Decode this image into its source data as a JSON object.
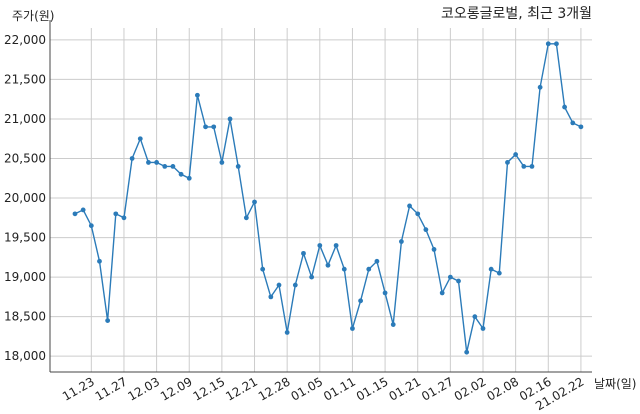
{
  "chart_data": {
    "type": "line",
    "title": "코오롱글로벌, 최근 3개월",
    "ylabel": "주가(원)",
    "xlabel": "날짜(일)",
    "ylim": [
      17800,
      22150
    ],
    "yticks": [
      "18,000",
      "18,500",
      "19,000",
      "19,500",
      "20,000",
      "20,500",
      "21,000",
      "21,500",
      "22,000"
    ],
    "ytick_values": [
      18000,
      18500,
      19000,
      19500,
      20000,
      20500,
      21000,
      21500,
      22000
    ],
    "xticks": [
      "11.23",
      "11.27",
      "12.03",
      "12.09",
      "12.15",
      "12.21",
      "12.28",
      "01.05",
      "01.11",
      "01.15",
      "01.21",
      "01.27",
      "02.02",
      "02.08",
      "02.16",
      "21.02.22"
    ],
    "xtick_index": [
      2,
      6,
      10,
      14,
      18,
      22,
      26,
      30,
      34,
      38,
      42,
      46,
      50,
      54,
      58,
      62
    ],
    "grid": true,
    "line_color": "#2b7bb9",
    "series": [
      {
        "values": [
          19800,
          19850,
          19650,
          19200,
          18450,
          19800,
          19750,
          20500,
          20750,
          20450,
          20450,
          20400,
          20400,
          20300,
          20250,
          21300,
          20900,
          20900,
          20450,
          21000,
          20400,
          19750,
          19950,
          19100,
          18750,
          18900,
          18300,
          18900,
          19300,
          19000,
          19400,
          19150,
          19400,
          19100,
          18350,
          18700,
          19100,
          19200,
          18800,
          18400,
          19450,
          19900,
          19800,
          19600,
          19350,
          18800,
          19000,
          18950,
          18050,
          18500,
          18350,
          19100,
          19050,
          20450,
          20550,
          20400,
          20400,
          21400,
          21950,
          21950,
          21150,
          20950,
          20900
        ]
      }
    ]
  }
}
